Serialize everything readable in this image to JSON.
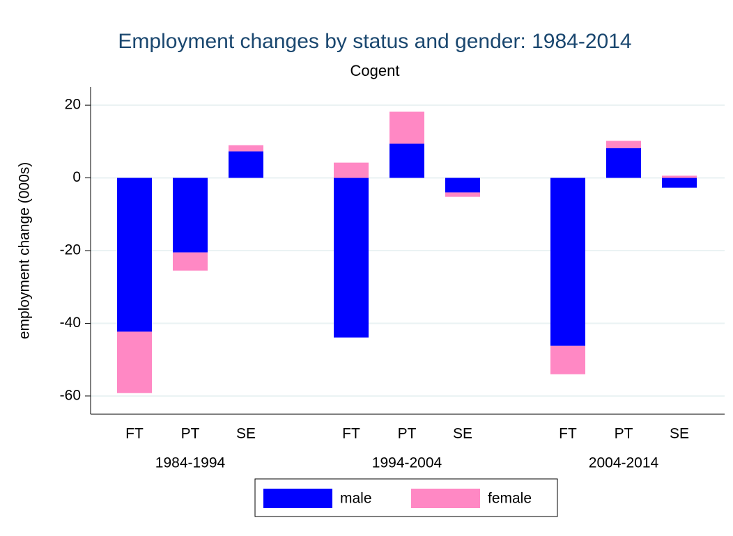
{
  "chart_data": {
    "type": "stacked_bar",
    "title": "Employment changes by status and gender: 1984-2014",
    "subtitle": "Cogent",
    "y_label": "employment change (000s)",
    "groups": [
      "1984-1994",
      "1994-2004",
      "2004-2014"
    ],
    "categories": [
      "FT",
      "PT",
      "SE",
      "FT",
      "PT",
      "SE",
      "FT",
      "PT",
      "SE"
    ],
    "series": [
      {
        "name": "male",
        "color": "#0000ff",
        "values": [
          -42.3,
          -20.5,
          7.3,
          -43.9,
          9.4,
          -4.0,
          -46.2,
          8.2,
          -2.7
        ]
      },
      {
        "name": "female",
        "color": "#ff88c4",
        "values": [
          -16.9,
          -5.0,
          1.7,
          4.2,
          8.8,
          -1.2,
          -7.8,
          2.0,
          0.6
        ]
      }
    ],
    "ylim": [
      -65,
      25
    ],
    "yticks": [
      -60,
      -40,
      -20,
      0,
      20
    ],
    "grid": true,
    "legend": "bottom"
  }
}
